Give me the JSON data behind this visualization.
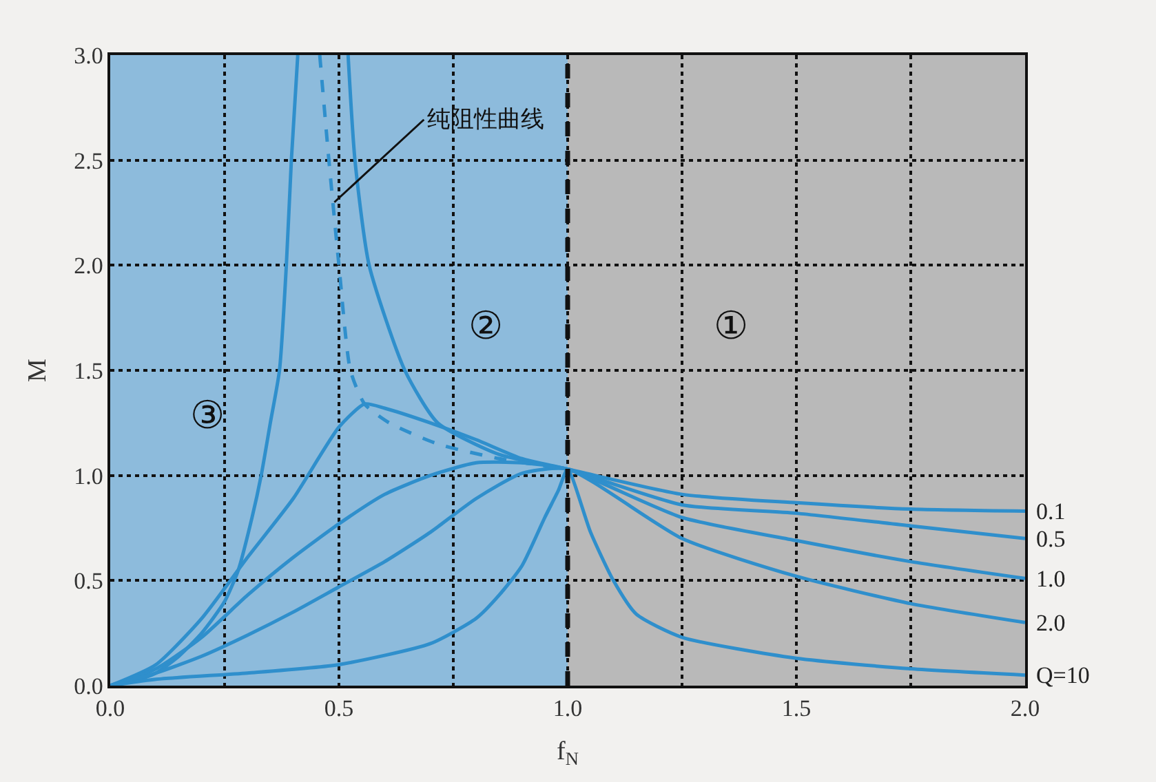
{
  "chart_data": {
    "type": "line",
    "xlabel": "f$_{N}$",
    "ylabel": "M",
    "xlim": [
      0,
      2.0
    ],
    "ylim": [
      0,
      3.0
    ],
    "xticks": [
      {
        "value": 0,
        "label": "0.0"
      },
      {
        "value": 0.25,
        "label": null
      },
      0.5,
      {
        "value": 0.75,
        "label": null
      },
      {
        "value": 1.0,
        "label": "1.0"
      },
      {
        "value": 1.25,
        "label": null
      },
      1.5,
      {
        "value": 1.75,
        "label": null
      },
      {
        "value": 2.0,
        "label": "2.0"
      }
    ],
    "yticks": [
      {
        "value": 0,
        "label": "0.0"
      },
      0.5,
      {
        "value": 1.0,
        "label": "1.0"
      },
      1.5,
      {
        "value": 2.0,
        "label": "2.0"
      },
      2.5,
      {
        "value": 3.0,
        "label": "3.0"
      }
    ],
    "grid": true,
    "legend": false,
    "series": [
      {
        "name": "0.1",
        "color": "#2f8fcc",
        "x": [
          0,
          0.05,
          0.1,
          0.15,
          0.2,
          0.25,
          0.28,
          0.31,
          0.33,
          0.35,
          0.37,
          0.385,
          0.396,
          0.41,
          0.45,
          0.52,
          0.535,
          0.566,
          0.644,
          0.716,
          0.85,
          1.0,
          1.25,
          1.5,
          1.75,
          2.0
        ],
        "values": [
          0,
          0.02,
          0.06,
          0.14,
          0.25,
          0.4,
          0.55,
          0.8,
          1.0,
          1.25,
          1.5,
          2.0,
          2.5,
          3.0,
          null,
          3.0,
          2.5,
          2.0,
          1.5,
          1.25,
          1.1,
          1.03,
          0.91,
          0.87,
          0.84,
          0.83
        ]
      },
      {
        "name": "0.5",
        "color": "#2f8fcc",
        "x": [
          0,
          0.1,
          0.2,
          0.3,
          0.4,
          0.5,
          0.556,
          0.6,
          0.7,
          0.8,
          0.9,
          1.0,
          1.25,
          1.5,
          1.75,
          2.0
        ],
        "values": [
          0,
          0.1,
          0.32,
          0.61,
          0.89,
          1.23,
          1.34,
          1.32,
          1.25,
          1.17,
          1.08,
          1.03,
          0.86,
          0.82,
          0.76,
          0.7
        ]
      },
      {
        "name": "1.0",
        "color": "#2f8fcc",
        "x": [
          0,
          0.1,
          0.2,
          0.3,
          0.4,
          0.5,
          0.6,
          0.7,
          0.8,
          0.9,
          1.0,
          1.25,
          1.5,
          1.75,
          2.0
        ],
        "values": [
          0,
          0.08,
          0.23,
          0.43,
          0.61,
          0.77,
          0.91,
          1.0,
          1.06,
          1.06,
          1.03,
          0.8,
          0.69,
          0.59,
          0.51
        ]
      },
      {
        "name": "2.0",
        "color": "#2f8fcc",
        "x": [
          0,
          0.1,
          0.2,
          0.3,
          0.4,
          0.5,
          0.6,
          0.7,
          0.8,
          0.9,
          1.0,
          1.25,
          1.5,
          1.75,
          2.0
        ],
        "values": [
          0,
          0.06,
          0.14,
          0.24,
          0.35,
          0.47,
          0.59,
          0.73,
          0.89,
          1.01,
          1.03,
          0.7,
          0.52,
          0.39,
          0.3
        ]
      },
      {
        "name": "Q=10",
        "color": "#2f8fcc",
        "x": [
          0,
          0.1,
          0.3,
          0.5,
          0.7,
          0.8,
          0.85,
          0.9,
          0.95,
          0.98,
          1.0,
          1.05,
          1.1,
          1.15,
          1.25,
          1.5,
          1.75,
          2.0
        ],
        "values": [
          0,
          0.03,
          0.06,
          0.1,
          0.2,
          0.32,
          0.43,
          0.57,
          0.8,
          0.93,
          1.03,
          0.73,
          0.5,
          0.34,
          0.23,
          0.13,
          0.08,
          0.05
        ]
      },
      {
        "color": "#2f8fcc",
        "line_style": "dashed",
        "x": [
          0.458,
          0.478,
          0.5,
          0.525,
          0.556,
          0.61,
          0.716,
          0.85,
          1.0
        ],
        "values": [
          3.0,
          2.5,
          2.0,
          1.5,
          1.34,
          1.25,
          1.15,
          1.08,
          1.03
        ]
      }
    ],
    "bands": [
      {
        "axis": "x",
        "from": 0,
        "to": 1.0,
        "color": "#8dbbdc"
      },
      {
        "axis": "x",
        "from": 1.0,
        "to": 2.0,
        "color": "#b9b9b9"
      }
    ],
    "ref_lines": [
      {
        "axis": "x",
        "value": 1.0,
        "color": "#111111",
        "line_style": "dashed"
      }
    ],
    "annotations": [
      {
        "text": "纯阻性曲线",
        "x": 0.49,
        "y": 2.3
      },
      "②",
      "①",
      "③"
    ]
  }
}
